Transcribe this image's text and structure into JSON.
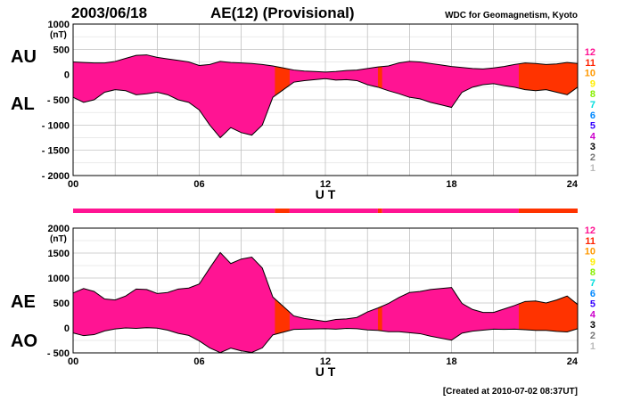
{
  "header": {
    "date": "2003/06/18",
    "title": "AE(12) (Provisional)",
    "source": "WDC for Geomagnetism, Kyoto"
  },
  "footer": {
    "created": "[Created at 2010-07-02 08:37UT]"
  },
  "colors": {
    "band_magenta": "#ff1493",
    "band_orange": "#ff3300",
    "grid": "#aaaaaa",
    "outline": "#000000"
  },
  "station_legend": [
    {
      "label": "12",
      "color": "#ff1493"
    },
    {
      "label": "11",
      "color": "#ff2200"
    },
    {
      "label": "10",
      "color": "#ff9900"
    },
    {
      "label": "9",
      "color": "#ffee00"
    },
    {
      "label": "8",
      "color": "#88ee00"
    },
    {
      "label": "7",
      "color": "#00dddd"
    },
    {
      "label": "6",
      "color": "#0088ff"
    },
    {
      "label": "5",
      "color": "#3300ff"
    },
    {
      "label": "4",
      "color": "#cc00cc"
    },
    {
      "label": "3",
      "color": "#000000"
    },
    {
      "label": "2",
      "color": "#777777"
    },
    {
      "label": "1",
      "color": "#bbbbbb"
    }
  ],
  "station_count_bar": [
    {
      "from": 0,
      "to": 9.6,
      "stations": "12"
    },
    {
      "from": 9.6,
      "to": 10.3,
      "stations": "11"
    },
    {
      "from": 10.3,
      "to": 14.5,
      "stations": "12"
    },
    {
      "from": 14.5,
      "to": 14.7,
      "stations": "11"
    },
    {
      "from": 14.7,
      "to": 21.2,
      "stations": "12"
    },
    {
      "from": 21.2,
      "to": 24,
      "stations": "11"
    }
  ],
  "chart_data": [
    {
      "type": "area",
      "panel": "AU/AL",
      "upper_label": "AU",
      "lower_label": "AL",
      "unit": "(nT)",
      "xlabel": "U T",
      "xlim": [
        0,
        24
      ],
      "ylim": [
        -2000,
        1000
      ],
      "x_ticks": [
        "00",
        "06",
        "12",
        "18",
        "24"
      ],
      "y_ticks": [
        "1000",
        "500",
        "0",
        "- 500",
        "- 1000",
        "- 1500",
        "- 2000"
      ],
      "grid": true,
      "x": [
        0,
        0.5,
        1,
        1.5,
        2,
        2.5,
        3,
        3.5,
        4,
        4.5,
        5,
        5.5,
        6,
        6.5,
        7,
        7.5,
        8,
        8.5,
        9,
        9.5,
        10,
        10.5,
        11,
        11.5,
        12,
        12.5,
        13,
        13.5,
        14,
        14.5,
        15,
        15.5,
        16,
        16.5,
        17,
        17.5,
        18,
        18.5,
        19,
        19.5,
        20,
        20.5,
        21,
        21.5,
        22,
        22.5,
        23,
        23.5,
        24
      ],
      "series": [
        {
          "name": "AU",
          "values": [
            250,
            240,
            230,
            230,
            260,
            320,
            380,
            390,
            340,
            310,
            280,
            250,
            180,
            200,
            260,
            240,
            230,
            220,
            200,
            170,
            130,
            90,
            70,
            60,
            50,
            60,
            80,
            90,
            120,
            150,
            170,
            230,
            260,
            250,
            220,
            190,
            160,
            140,
            120,
            110,
            130,
            160,
            200,
            230,
            220,
            200,
            210,
            240,
            220
          ]
        },
        {
          "name": "AL",
          "values": [
            -450,
            -550,
            -500,
            -350,
            -300,
            -320,
            -400,
            -380,
            -350,
            -400,
            -500,
            -550,
            -700,
            -1000,
            -1250,
            -1050,
            -1150,
            -1200,
            -1000,
            -450,
            -300,
            -150,
            -120,
            -100,
            -80,
            -110,
            -100,
            -120,
            -200,
            -250,
            -320,
            -380,
            -450,
            -480,
            -550,
            -600,
            -650,
            -350,
            -250,
            -200,
            -180,
            -220,
            -250,
            -300,
            -320,
            -300,
            -350,
            -400,
            -250
          ]
        }
      ]
    },
    {
      "type": "area",
      "panel": "AE/AO",
      "upper_label": "AE",
      "lower_label": "AO",
      "unit": "(nT)",
      "xlabel": "U T",
      "xlim": [
        0,
        24
      ],
      "ylim": [
        -500,
        2000
      ],
      "x_ticks": [
        "00",
        "06",
        "12",
        "18",
        "24"
      ],
      "y_ticks": [
        "2000",
        "1500",
        "1000",
        "500",
        "0",
        "- 500"
      ],
      "grid": true,
      "x": [
        0,
        0.5,
        1,
        1.5,
        2,
        2.5,
        3,
        3.5,
        4,
        4.5,
        5,
        5.5,
        6,
        6.5,
        7,
        7.5,
        8,
        8.5,
        9,
        9.5,
        10,
        10.5,
        11,
        11.5,
        12,
        12.5,
        13,
        13.5,
        14,
        14.5,
        15,
        15.5,
        16,
        16.5,
        17,
        17.5,
        18,
        18.5,
        19,
        19.5,
        20,
        20.5,
        21,
        21.5,
        22,
        22.5,
        23,
        23.5,
        24
      ],
      "series": [
        {
          "name": "AE",
          "values": [
            700,
            790,
            730,
            580,
            560,
            640,
            780,
            770,
            690,
            710,
            780,
            800,
            880,
            1200,
            1510,
            1290,
            1380,
            1420,
            1200,
            620,
            430,
            240,
            190,
            160,
            130,
            170,
            180,
            210,
            320,
            400,
            490,
            610,
            710,
            730,
            770,
            790,
            810,
            490,
            370,
            310,
            310,
            380,
            450,
            530,
            540,
            500,
            560,
            640,
            470
          ]
        },
        {
          "name": "AO",
          "values": [
            -100,
            -155,
            -135,
            -60,
            -20,
            0,
            -10,
            5,
            -5,
            -45,
            -110,
            -150,
            -260,
            -400,
            -495,
            -405,
            -460,
            -490,
            -400,
            -140,
            -85,
            -30,
            -25,
            -20,
            -15,
            -25,
            -10,
            -15,
            -40,
            -50,
            -75,
            -75,
            -95,
            -115,
            -165,
            -205,
            -245,
            -105,
            -65,
            -45,
            -25,
            -30,
            -25,
            -35,
            -50,
            -50,
            -70,
            -80,
            -15
          ]
        }
      ]
    }
  ]
}
